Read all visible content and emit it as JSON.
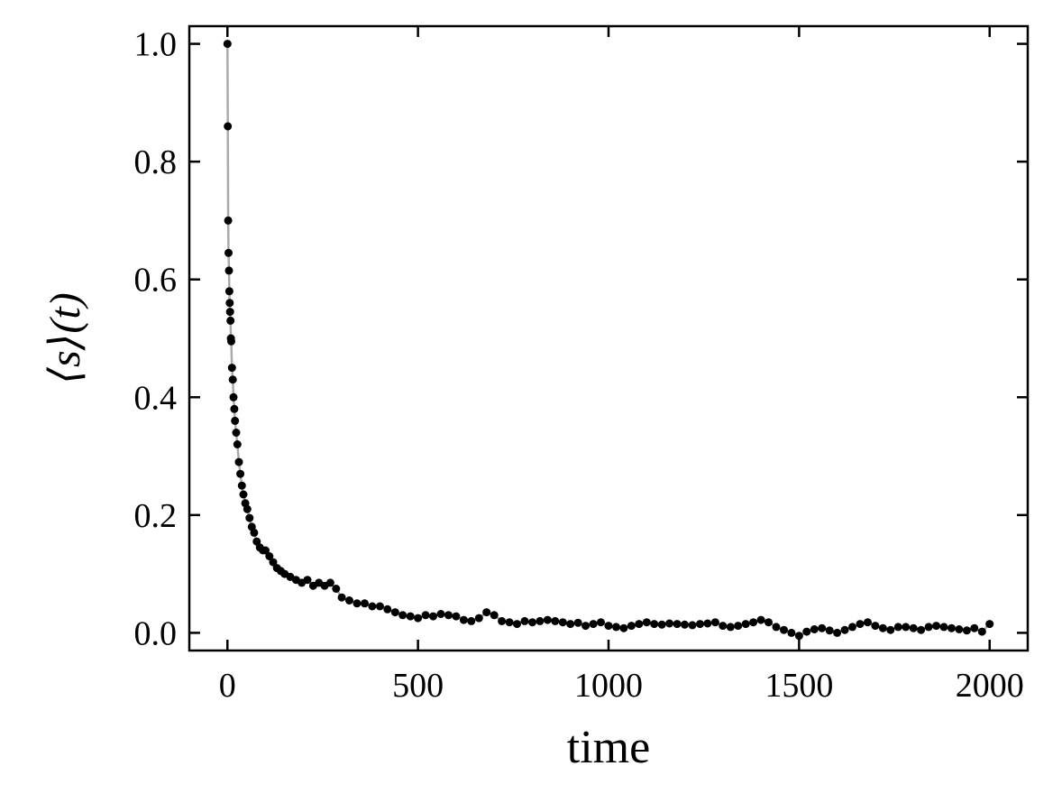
{
  "chart_data": {
    "type": "scatter",
    "xlabel": "time",
    "ylabel": "⟨s⟩(t)",
    "xlim": [
      -100,
      2100
    ],
    "ylim": [
      -0.03,
      1.03
    ],
    "xticks": [
      0,
      500,
      1000,
      1500,
      2000
    ],
    "xtick_labels": [
      "0",
      "500",
      "1000",
      "1500",
      "2000"
    ],
    "yticks": [
      0.0,
      0.2,
      0.4,
      0.6,
      0.8,
      1.0
    ],
    "ytick_labels": [
      "0.0",
      "0.2",
      "0.4",
      "0.6",
      "0.8",
      "1.0"
    ],
    "grid": false,
    "tick_direction": "in",
    "marker_color": "#000000",
    "line_color": "#aaaaaa",
    "series": [
      {
        "x": [
          0,
          1,
          2,
          3,
          4,
          5,
          6,
          7,
          8,
          9,
          10,
          12,
          14,
          16,
          18,
          20,
          23,
          26,
          30,
          34,
          38,
          42,
          47,
          52,
          58,
          64,
          70,
          77,
          85,
          93,
          100,
          110,
          120,
          130,
          140,
          150,
          165,
          180,
          195,
          210,
          225,
          240,
          255,
          270,
          285,
          300,
          320,
          340,
          360,
          380,
          400,
          420,
          440,
          460,
          480,
          500,
          520,
          540,
          560,
          580,
          600,
          620,
          640,
          660,
          680,
          700,
          720,
          740,
          760,
          780,
          800,
          820,
          840,
          860,
          880,
          900,
          920,
          940,
          960,
          980,
          1000,
          1020,
          1040,
          1060,
          1080,
          1100,
          1120,
          1140,
          1160,
          1180,
          1200,
          1220,
          1240,
          1260,
          1280,
          1300,
          1320,
          1340,
          1360,
          1380,
          1400,
          1420,
          1440,
          1460,
          1480,
          1500,
          1520,
          1540,
          1560,
          1580,
          1600,
          1620,
          1640,
          1660,
          1680,
          1700,
          1720,
          1740,
          1760,
          1780,
          1800,
          1820,
          1840,
          1860,
          1880,
          1900,
          1920,
          1940,
          1960,
          1980,
          2000
        ],
        "y": [
          1.0,
          0.86,
          0.7,
          0.645,
          0.615,
          0.58,
          0.56,
          0.545,
          0.53,
          0.5,
          0.495,
          0.45,
          0.43,
          0.4,
          0.38,
          0.36,
          0.34,
          0.32,
          0.29,
          0.27,
          0.25,
          0.235,
          0.22,
          0.21,
          0.195,
          0.18,
          0.17,
          0.155,
          0.145,
          0.14,
          0.14,
          0.13,
          0.12,
          0.11,
          0.105,
          0.1,
          0.095,
          0.09,
          0.085,
          0.09,
          0.08,
          0.085,
          0.08,
          0.085,
          0.075,
          0.06,
          0.055,
          0.05,
          0.05,
          0.045,
          0.045,
          0.04,
          0.035,
          0.03,
          0.028,
          0.025,
          0.03,
          0.028,
          0.032,
          0.03,
          0.028,
          0.022,
          0.02,
          0.025,
          0.035,
          0.03,
          0.02,
          0.018,
          0.015,
          0.02,
          0.018,
          0.02,
          0.022,
          0.02,
          0.018,
          0.015,
          0.017,
          0.012,
          0.015,
          0.018,
          0.012,
          0.01,
          0.008,
          0.012,
          0.015,
          0.018,
          0.015,
          0.014,
          0.016,
          0.015,
          0.014,
          0.013,
          0.015,
          0.016,
          0.018,
          0.012,
          0.01,
          0.012,
          0.015,
          0.018,
          0.022,
          0.018,
          0.01,
          0.005,
          0.0,
          -0.005,
          0.002,
          0.006,
          0.008,
          0.004,
          0.0,
          0.005,
          0.01,
          0.015,
          0.018,
          0.012,
          0.008,
          0.005,
          0.01,
          0.01,
          0.008,
          0.005,
          0.01,
          0.012,
          0.01,
          0.008,
          0.006,
          0.004,
          0.008,
          0.002,
          0.015
        ]
      }
    ]
  }
}
